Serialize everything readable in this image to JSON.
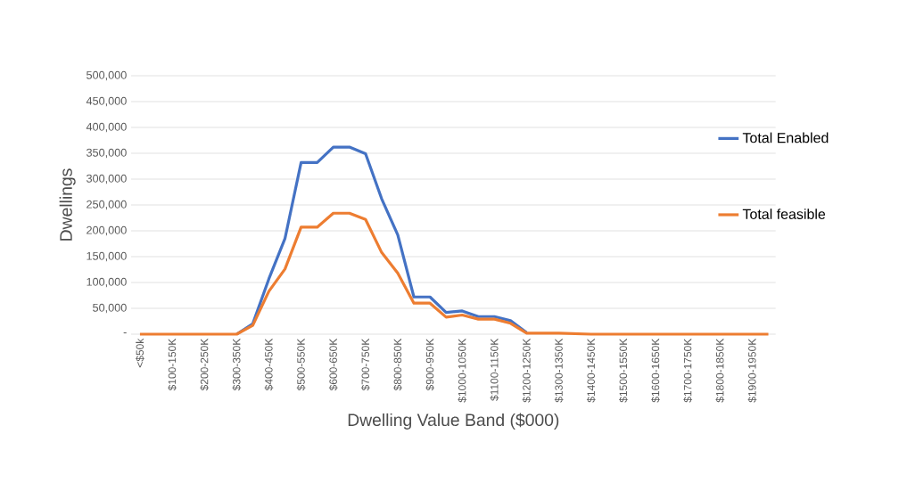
{
  "chart_data": {
    "type": "line",
    "xlabel": "Dwelling Value Band ($000)",
    "ylabel": "Dwellings",
    "categories": [
      "<$50k",
      null,
      "$100-150K",
      null,
      "$200-250K",
      null,
      "$300-350K",
      null,
      "$400-450K",
      null,
      "$500-550K",
      null,
      "$600-650K",
      null,
      "$700-750K",
      null,
      "$800-850K",
      null,
      "$900-950K",
      null,
      "$1000-1050K",
      null,
      "$1100-1150K",
      null,
      "$1200-1250K",
      null,
      "$1300-1350K",
      null,
      "$1400-1450K",
      null,
      "$1500-1550K",
      null,
      "$1600-1650K",
      null,
      "$1700-1750K",
      null,
      "$1800-1850K",
      null,
      "$1900-1950K",
      null
    ],
    "series": [
      {
        "name": "Total Enabled",
        "color": "#4472c4",
        "values": [
          null,
          null,
          null,
          null,
          null,
          null,
          0,
          20000,
          107000,
          185000,
          332000,
          332000,
          362000,
          362000,
          349000,
          262000,
          192000,
          72000,
          72000,
          42000,
          45000,
          34000,
          34000,
          26000,
          3000,
          null,
          null,
          null,
          null,
          null,
          null,
          null,
          null,
          null,
          null,
          null,
          null,
          null,
          null,
          null
        ]
      },
      {
        "name": "Total feasible",
        "color": "#ed7d31",
        "values": [
          0,
          0,
          0,
          0,
          0,
          0,
          0,
          17000,
          83000,
          126000,
          207000,
          207000,
          234000,
          234000,
          222000,
          158000,
          118000,
          60000,
          60000,
          33000,
          37000,
          29000,
          29000,
          21000,
          2000,
          2000,
          2000,
          1000,
          0,
          0,
          0,
          0,
          0,
          0,
          0,
          0,
          0,
          0,
          0,
          0
        ]
      }
    ],
    "ylim": [
      0,
      500000
    ],
    "yticks": [
      {
        "value": 0,
        "label": "-"
      },
      {
        "value": 50000,
        "label": "50,000"
      },
      {
        "value": 100000,
        "label": "100,000"
      },
      {
        "value": 150000,
        "label": "150,000"
      },
      {
        "value": 200000,
        "label": "200,000"
      },
      {
        "value": 250000,
        "label": "250,000"
      },
      {
        "value": 300000,
        "label": "300,000"
      },
      {
        "value": 350000,
        "label": "350,000"
      },
      {
        "value": 400000,
        "label": "400,000"
      },
      {
        "value": 450000,
        "label": "450,000"
      },
      {
        "value": 500000,
        "label": "500,000"
      }
    ],
    "grid": "y",
    "legend": "right"
  }
}
